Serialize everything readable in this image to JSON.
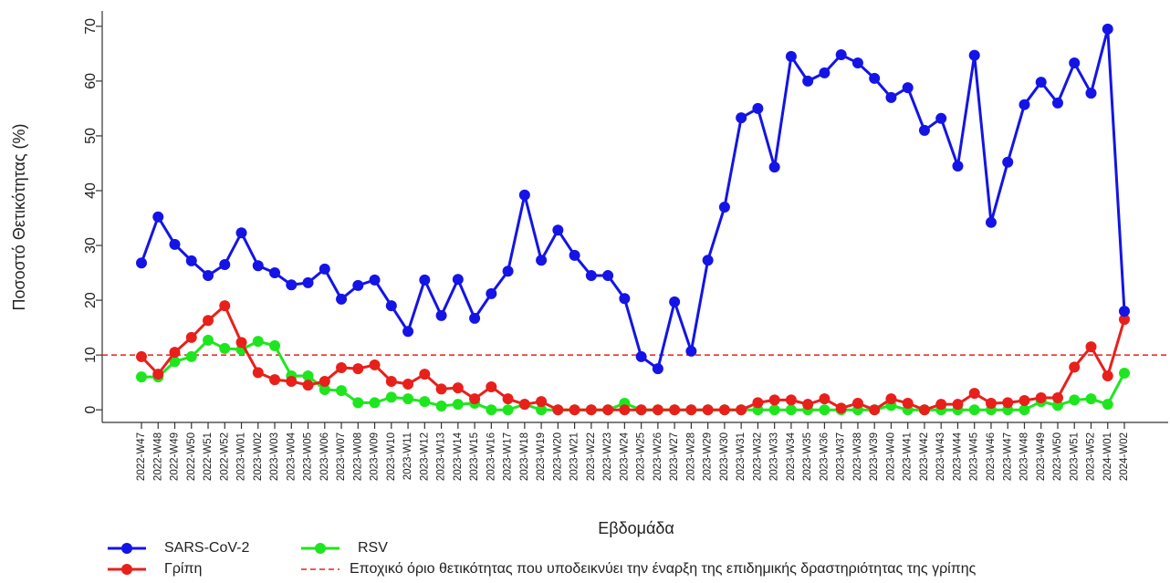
{
  "chart_data": {
    "type": "line",
    "y_label": "Ποσοστό Θετικότητας (%)",
    "x_label": "Εβδομάδα",
    "categories": [
      "2022-W47",
      "2022-W48",
      "2022-W49",
      "2022-W50",
      "2022-W51",
      "2022-W52",
      "2023-W01",
      "2023-W02",
      "2023-W03",
      "2023-W04",
      "2023-W05",
      "2023-W06",
      "2023-W07",
      "2023-W08",
      "2023-W09",
      "2023-W10",
      "2023-W11",
      "2023-W12",
      "2023-W13",
      "2023-W14",
      "2023-W15",
      "2023-W16",
      "2023-W17",
      "2023-W18",
      "2023-W19",
      "2023-W20",
      "2023-W21",
      "2023-W22",
      "2023-W23",
      "2023-W24",
      "2023-W25",
      "2023-W26",
      "2023-W27",
      "2023-W28",
      "2023-W29",
      "2023-W30",
      "2023-W31",
      "2023-W32",
      "2023-W33",
      "2023-W34",
      "2023-W35",
      "2023-W36",
      "2023-W37",
      "2023-W38",
      "2023-W39",
      "2023-W40",
      "2023-W41",
      "2023-W42",
      "2023-W43",
      "2023-W44",
      "2023-W45",
      "2023-W46",
      "2023-W47",
      "2023-W48",
      "2023-W49",
      "2023-W50",
      "2023-W51",
      "2023-W52",
      "2024-W01",
      "2024-W02"
    ],
    "series": [
      {
        "name": "SARS-CoV-2",
        "color": "#1414e6",
        "values": [
          26.8,
          35.2,
          30.2,
          27.2,
          24.5,
          26.5,
          32.3,
          26.3,
          25.0,
          22.8,
          23.2,
          25.7,
          20.2,
          22.7,
          23.7,
          19.0,
          14.3,
          23.7,
          17.2,
          23.8,
          16.7,
          21.2,
          25.3,
          39.2,
          27.3,
          32.8,
          28.2,
          24.5,
          24.5,
          20.3,
          9.7,
          7.5,
          19.7,
          10.7,
          27.3,
          37.0,
          53.3,
          55.0,
          44.3,
          64.5,
          60.0,
          61.5,
          64.8,
          63.3,
          60.5,
          57.0,
          58.8,
          51.0,
          53.2,
          44.5,
          64.7,
          34.2,
          45.2,
          55.7,
          59.8,
          56.0,
          63.3,
          57.8,
          69.5,
          18.0
        ]
      },
      {
        "name": "Γρίπη",
        "color": "#e8201b",
        "values": [
          9.7,
          6.5,
          10.5,
          13.2,
          16.3,
          19.0,
          12.3,
          6.8,
          5.5,
          5.2,
          4.5,
          5.2,
          7.7,
          7.5,
          8.2,
          5.2,
          4.7,
          6.5,
          3.8,
          4.0,
          2.0,
          4.2,
          2.0,
          1.0,
          1.5,
          0,
          0,
          0,
          0,
          0,
          0,
          0,
          0,
          0,
          0,
          0,
          0,
          1.3,
          1.8,
          1.8,
          1.0,
          2.0,
          0.3,
          1.2,
          0,
          2.0,
          1.2,
          0,
          1.0,
          1.0,
          3.0,
          1.2,
          1.3,
          1.7,
          2.2,
          2.2,
          7.8,
          11.5,
          6.2,
          16.5
        ]
      },
      {
        "name": "RSV",
        "color": "#1ee61e",
        "values": [
          6.0,
          6.0,
          8.8,
          9.7,
          12.7,
          11.2,
          11.0,
          12.5,
          11.7,
          6.2,
          6.2,
          3.7,
          3.5,
          1.3,
          1.3,
          2.3,
          2.0,
          1.5,
          0.7,
          1.0,
          1.2,
          0,
          0,
          1.0,
          0,
          0,
          0,
          0,
          0,
          1.2,
          0,
          0,
          0,
          0,
          0,
          0,
          0,
          0,
          0,
          0,
          0,
          0,
          0,
          0,
          0,
          0.8,
          0,
          0,
          0,
          0,
          0,
          0,
          0,
          0,
          1.5,
          0.8,
          1.8,
          2.0,
          1.0,
          6.7
        ]
      }
    ],
    "reference_line": {
      "value": 10,
      "label": "Εποχικό όριο θετικότητας που υποδεικνύει την έναρξη της επιδημικής δραστηριότητας της γρίπης",
      "color": "#e8201b",
      "style": "dashed"
    },
    "ylim": [
      -2.3,
      72.8
    ],
    "yticks": [
      0,
      10,
      20,
      30,
      40,
      50,
      60,
      70
    ]
  }
}
